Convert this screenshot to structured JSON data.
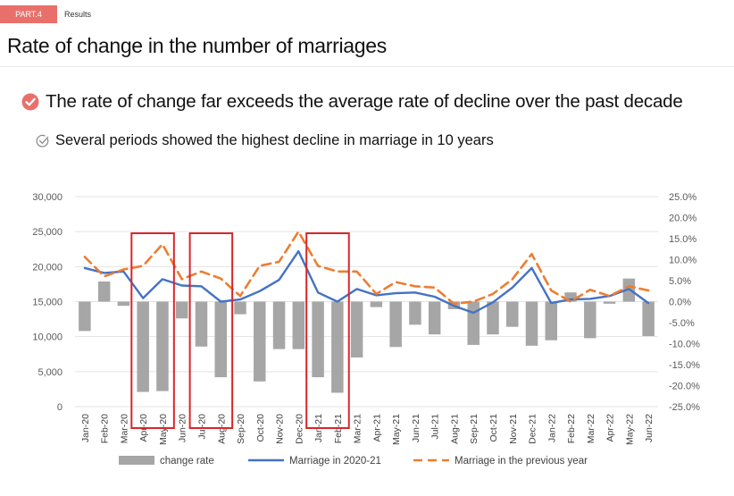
{
  "header": {
    "section_tag": "PART.4",
    "section_name": "Results"
  },
  "page_title": "Rate of change in the number of marriages",
  "bullets": {
    "main": "The rate of change far exceeds the average rate of decline over the past decade",
    "sub": "Several periods showed the highest decline in marriage in 10 years"
  },
  "colors": {
    "accent": "#e9706a",
    "bar": "#a6a6a6",
    "line2020": "#4472c4",
    "linePrev": "#ed7d31",
    "highlight": "#d9262b"
  },
  "chart_data": {
    "type": "bar",
    "categories": [
      "Jan-20",
      "Feb-20",
      "Mar-20",
      "Apr-20",
      "May-20",
      "Jun-20",
      "Jul-20",
      "Aug-20",
      "Sep-20",
      "Oct-20",
      "Nov-20",
      "Dec-20",
      "Jan-21",
      "Feb-21",
      "Mar-21",
      "Apr-21",
      "May-21",
      "Jun-21",
      "Jul-21",
      "Aug-21",
      "Sep-21",
      "Oct-21",
      "Nov-21",
      "Dec-21",
      "Jan-22",
      "Feb-22",
      "Mar-22",
      "Apr-22",
      "May-22",
      "Jun-22"
    ],
    "series": [
      {
        "name": "change rate",
        "type": "bar",
        "axis": "right",
        "values": [
          -7.0,
          4.8,
          -1.0,
          -21.5,
          -21.3,
          -4.0,
          -10.7,
          -18.0,
          -3.0,
          -19.0,
          -11.3,
          -11.3,
          -18.0,
          -21.7,
          -13.3,
          -1.3,
          -10.8,
          -5.5,
          -7.8,
          -1.8,
          -10.3,
          -7.8,
          -6.0,
          -10.5,
          -9.2,
          2.2,
          -8.7,
          -0.5,
          5.5,
          -8.2
        ]
      },
      {
        "name": "Marriage in 2020-21",
        "type": "line",
        "axis": "left",
        "values": [
          19800,
          19100,
          19300,
          15500,
          18200,
          17300,
          17200,
          15000,
          15300,
          16500,
          18100,
          22200,
          16300,
          15000,
          16800,
          15900,
          16200,
          16300,
          15700,
          14400,
          13400,
          14900,
          17000,
          19800,
          14800,
          15300,
          15400,
          15800,
          16800,
          14800
        ]
      },
      {
        "name": "Marriage in the previous year",
        "type": "line",
        "style": "dashed",
        "axis": "left",
        "values": [
          21400,
          18600,
          19600,
          20100,
          23200,
          18200,
          19300,
          18300,
          15800,
          20100,
          20700,
          25000,
          20100,
          19300,
          19300,
          16100,
          17800,
          17200,
          17000,
          14700,
          15000,
          16100,
          18200,
          21800,
          16600,
          15000,
          16700,
          15800,
          17200,
          16600
        ]
      }
    ],
    "y_left": {
      "ticks": [
        "0",
        "5,000",
        "10,000",
        "15,000",
        "20,000",
        "25,000",
        "30,000"
      ],
      "ylim": [
        0,
        30000
      ]
    },
    "y_right": {
      "ticks": [
        "-25.0%",
        "-20.0%",
        "-15.0%",
        "-10.0%",
        "-5.0%",
        "0.0%",
        "5.0%",
        "10.0%",
        "15.0%",
        "20.0%",
        "25.0%"
      ],
      "ylim": [
        -25,
        25
      ]
    },
    "legend": [
      "change rate",
      "Marriage in 2020-21",
      "Marriage in the previous year"
    ],
    "legend_position": "bottom",
    "highlight_periods": [
      [
        "Apr-20",
        "May-20"
      ],
      [
        "Jul-20",
        "Aug-20"
      ],
      [
        "Jan-21",
        "Feb-21"
      ]
    ],
    "grid": true
  }
}
